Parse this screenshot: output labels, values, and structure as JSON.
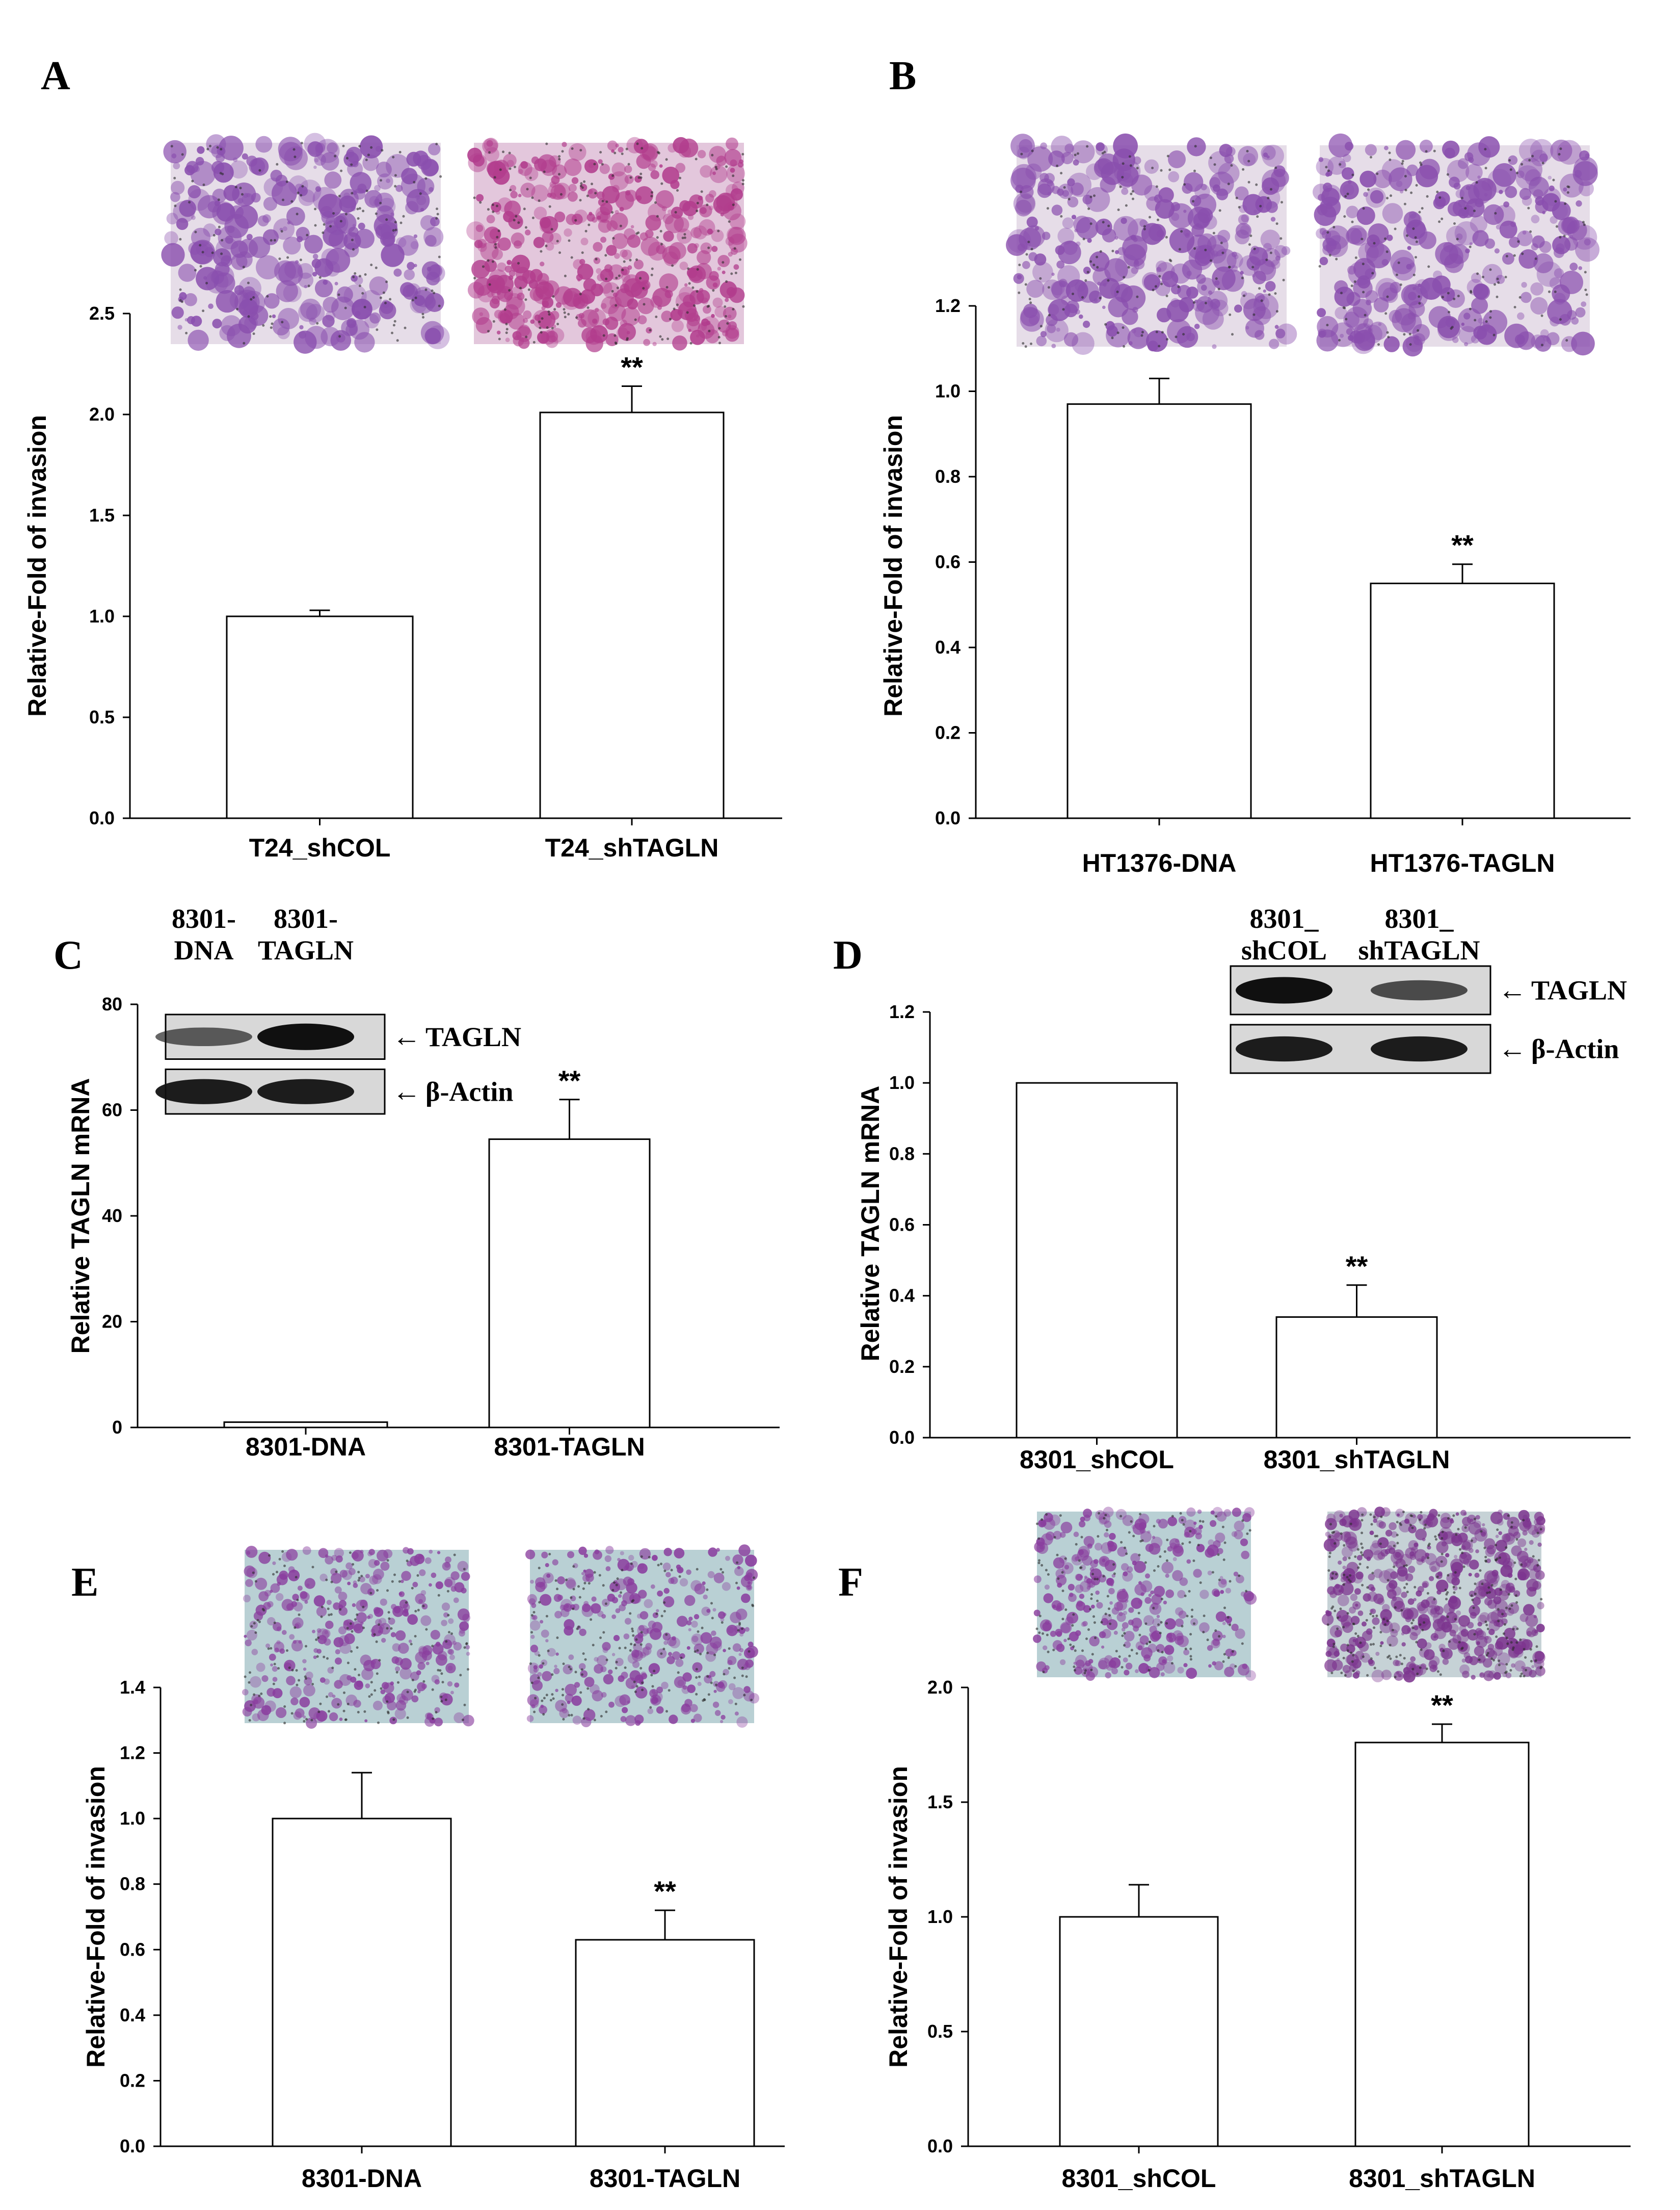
{
  "panels": [
    {
      "letter": "A",
      "chart_data": {
        "type": "bar",
        "categories": [
          "T24_shCOL",
          "T24_shTAGLN"
        ],
        "values": [
          1.0,
          2.01
        ],
        "errors": [
          0.03,
          0.13
        ],
        "significance": [
          "",
          "**"
        ],
        "ylabel": "Relative-Fold of invasion",
        "ylim": [
          0,
          2.5
        ],
        "yticks": [
          "0.0",
          "0.5",
          "1.0",
          "1.5",
          "2.0",
          "2.5"
        ]
      },
      "micrographs": [
        {
          "name": "micrograph-t24-shcol",
          "stain": "violet"
        },
        {
          "name": "micrograph-t24-shtagln",
          "stain": "magenta"
        }
      ]
    },
    {
      "letter": "B",
      "chart_data": {
        "type": "bar",
        "categories": [
          "HT1376-DNA",
          "HT1376-TAGLN"
        ],
        "values": [
          0.97,
          0.55
        ],
        "errors": [
          0.06,
          0.045
        ],
        "significance": [
          "",
          "**"
        ],
        "ylabel": "Relative-Fold of invasion",
        "ylim": [
          0,
          1.2
        ],
        "yticks": [
          "0.0",
          "0.2",
          "0.4",
          "0.6",
          "0.8",
          "1.0",
          "1.2"
        ]
      },
      "micrographs": [
        {
          "name": "micrograph-ht1376-dna",
          "stain": "violet"
        },
        {
          "name": "micrograph-ht1376-tagln",
          "stain": "violet"
        }
      ]
    },
    {
      "letter": "C",
      "chart_data": {
        "type": "bar",
        "categories": [
          "8301-DNA",
          "8301-TAGLN"
        ],
        "values": [
          1.0,
          54.5
        ],
        "errors": [
          0.0,
          7.5
        ],
        "significance": [
          "",
          "**"
        ],
        "ylabel": "Relative TAGLN mRNA",
        "ylim": [
          0,
          80
        ],
        "yticks": [
          "0",
          "20",
          "40",
          "60",
          "80"
        ]
      },
      "western_blot": {
        "lanes": [
          [
            "8301-",
            "DNA"
          ],
          [
            "8301-",
            "TAGLN"
          ]
        ],
        "bands": [
          {
            "label": "TAGLN",
            "arrow": "←",
            "intensity": [
              0.45,
              1.0
            ]
          },
          {
            "label": "β-Actin",
            "arrow": "←",
            "intensity": [
              0.9,
              0.9
            ]
          }
        ]
      }
    },
    {
      "letter": "D",
      "chart_data": {
        "type": "bar",
        "categories": [
          "8301_shCOL",
          "8301_shTAGLN"
        ],
        "values": [
          1.0,
          0.34
        ],
        "errors": [
          0.0,
          0.09
        ],
        "significance": [
          "",
          "**"
        ],
        "ylabel": "Relative TAGLN mRNA",
        "ylim": [
          0,
          1.2
        ],
        "yticks": [
          "0.0",
          "0.2",
          "0.4",
          "0.6",
          "0.8",
          "1.0",
          "1.2"
        ]
      },
      "western_blot": {
        "lanes": [
          [
            "8301_",
            "shCOL"
          ],
          [
            "8301_",
            "shTAGLN"
          ]
        ],
        "bands": [
          {
            "label": "TAGLN",
            "arrow": "←",
            "intensity": [
              1.0,
              0.55
            ]
          },
          {
            "label": "β-Actin",
            "arrow": "←",
            "intensity": [
              0.9,
              0.9
            ]
          }
        ]
      }
    },
    {
      "letter": "E",
      "chart_data": {
        "type": "bar",
        "categories": [
          "8301-DNA",
          "8301-TAGLN"
        ],
        "values": [
          1.0,
          0.63
        ],
        "errors": [
          0.14,
          0.09
        ],
        "significance": [
          "",
          "**"
        ],
        "ylabel": "Relative-Fold of invasion",
        "ylim": [
          0,
          1.4
        ],
        "yticks": [
          "0.0",
          "0.2",
          "0.4",
          "0.6",
          "0.8",
          "1.0",
          "1.2",
          "1.4"
        ]
      },
      "micrographs": [
        {
          "name": "micrograph-8301-dna",
          "stain": "sparse"
        },
        {
          "name": "micrograph-8301-tagln",
          "stain": "sparse"
        }
      ]
    },
    {
      "letter": "F",
      "chart_data": {
        "type": "bar",
        "categories": [
          "8301_shCOL",
          "8301_shTAGLN"
        ],
        "values": [
          1.0,
          1.76
        ],
        "errors": [
          0.14,
          0.08
        ],
        "significance": [
          "",
          "**"
        ],
        "ylabel": "Relative-Fold of invasion",
        "ylim": [
          0,
          2.0
        ],
        "yticks": [
          "0.0",
          "0.5",
          "1.0",
          "1.5",
          "2.0"
        ]
      },
      "micrographs": [
        {
          "name": "micrograph-8301-shcol",
          "stain": "sparse"
        },
        {
          "name": "micrograph-8301-shtagln",
          "stain": "dense"
        }
      ]
    }
  ],
  "colors": {
    "axis": "#000000",
    "bar_fill": "#ffffff",
    "violet": "#8a4fae",
    "magenta": "#b23d8d",
    "blot_band": "#101010",
    "blot_background": "#d8d8d8"
  }
}
